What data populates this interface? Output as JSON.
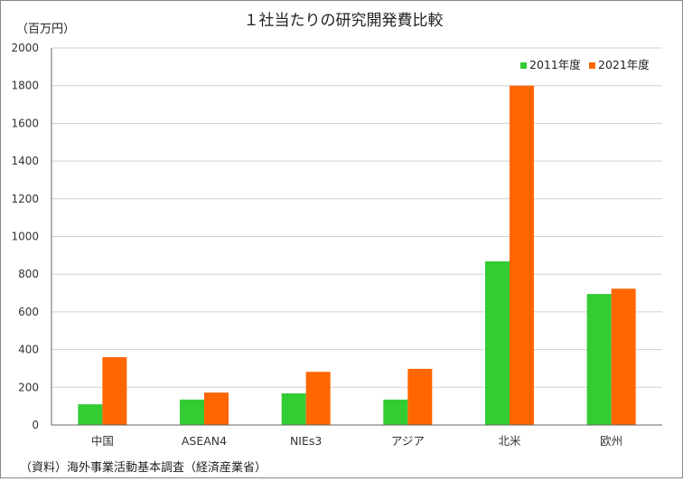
{
  "chart_data": {
    "type": "bar",
    "title": "１社当たりの研究開発費比較",
    "ylabel": "（百万円）",
    "xlabel": "",
    "categories": [
      "中国",
      "ASEAN4",
      "NIEs3",
      "アジア",
      "北米",
      "欧州"
    ],
    "series": [
      {
        "name": "2011年度",
        "color": "#33cc33",
        "values": [
          110,
          135,
          168,
          135,
          868,
          695
        ]
      },
      {
        "name": "2021年度",
        "color": "#ff6600",
        "values": [
          360,
          172,
          282,
          298,
          1800,
          723
        ]
      }
    ],
    "ylim": [
      0,
      2000
    ],
    "yticks": [
      0,
      200,
      400,
      600,
      800,
      1000,
      1200,
      1400,
      1600,
      1800,
      2000
    ],
    "grid": true,
    "legend_position": "top-right",
    "source": "（資料）海外事業活動基本調査（経済産業省）"
  }
}
